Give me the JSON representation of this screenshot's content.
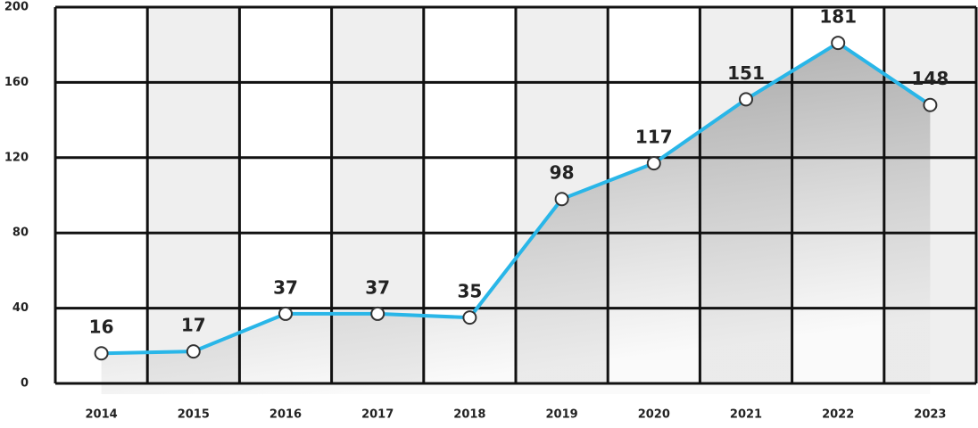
{
  "chart_data": {
    "type": "line",
    "categories": [
      "2014",
      "2015",
      "2016",
      "2017",
      "2018",
      "2019",
      "2020",
      "2021",
      "2022",
      "2023"
    ],
    "values": [
      16,
      17,
      37,
      37,
      35,
      98,
      117,
      151,
      181,
      148
    ],
    "color": "#29b6e8",
    "ylim": [
      0,
      200
    ],
    "yticks": [
      0,
      40,
      80,
      120,
      160,
      200
    ],
    "grid": true
  }
}
